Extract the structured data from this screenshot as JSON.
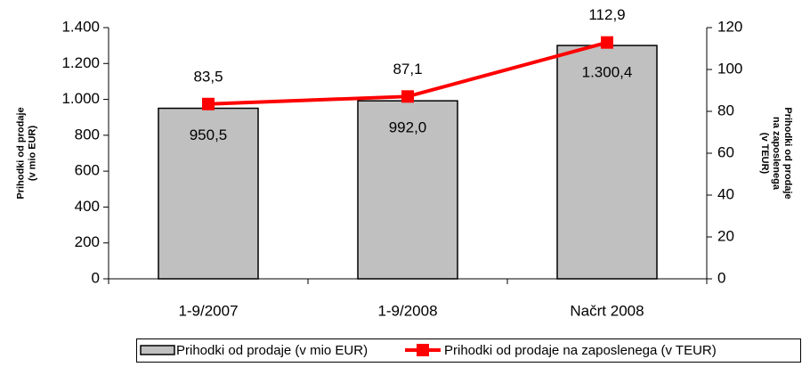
{
  "chart_data": {
    "type": "bar_line",
    "categories": [
      "1-9/2007",
      "1-9/2008",
      "Načrt 2008"
    ],
    "series": [
      {
        "name": "Prihodki od prodaje (v mio EUR)",
        "type": "bar",
        "color": "#c0c0c0",
        "values": [
          950.5,
          992.0,
          1300.4
        ],
        "value_labels": [
          "950,5",
          "992,0",
          "1.300,4"
        ]
      },
      {
        "name": "Prihodki od prodaje na zaposlenega (v TEUR)",
        "type": "line",
        "axis": "y2",
        "color": "#ff0000",
        "values": [
          83.5,
          87.1,
          112.9
        ],
        "value_labels": [
          "83,5",
          "87,1",
          "112,9"
        ]
      }
    ],
    "ylim": [
      0,
      1400
    ],
    "yticks": [
      0,
      200,
      400,
      600,
      800,
      {
        "value": 1000,
        "label": "1.000"
      },
      {
        "value": 1200,
        "label": "1.200"
      },
      {
        "value": 1400,
        "label": "1.400"
      }
    ],
    "y2lim": [
      0,
      120
    ],
    "y2ticks": [
      0,
      20,
      40,
      60,
      80,
      100,
      120
    ],
    "y_label": [
      "Prihodki od prodaje",
      "(v  mio EUR)"
    ],
    "y2_label": [
      "Prihodki od prodaje",
      "na zaposlenega",
      "(v TEUR)"
    ],
    "legend": "bottom"
  }
}
